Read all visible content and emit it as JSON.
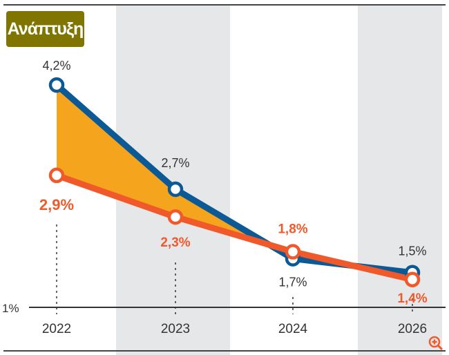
{
  "title": "Ανάπτυξη",
  "chart_data": {
    "type": "line",
    "title": "Ανάπτυξη",
    "categories": [
      "2022",
      "2023",
      "2024",
      "2026"
    ],
    "series": [
      {
        "name": "blue",
        "color": "#0b5a96",
        "values": [
          4.2,
          2.7,
          1.7,
          1.5
        ],
        "labels": [
          "4,2%",
          "2,7%",
          "1,7%",
          "1,5%"
        ]
      },
      {
        "name": "orange",
        "color": "#f0592a",
        "values": [
          2.9,
          2.3,
          1.8,
          1.4
        ],
        "labels": [
          "2,9%",
          "2,3%",
          "1,8%",
          "1,4%"
        ]
      }
    ],
    "fill_between_color": "#f5a41e",
    "ylim": [
      1,
      4.3
    ],
    "y_tick_label": "1%",
    "shaded_columns": [
      "2023",
      "2026"
    ]
  },
  "zoom_icon": "zoom-in-icon"
}
